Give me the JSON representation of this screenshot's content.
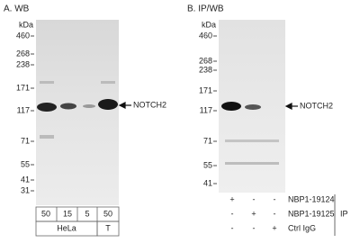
{
  "panels": [
    {
      "title": "A. WB",
      "unit": "kDa",
      "markers": [
        "460",
        "268",
        "238",
        "171",
        "117",
        "71",
        "55",
        "41",
        "31"
      ],
      "band_label": "NOTCH2",
      "lanes": [
        "50",
        "15",
        "5",
        "50"
      ],
      "groups": [
        "HeLa",
        "T"
      ]
    },
    {
      "title": "B. IP/WB",
      "unit": "kDa",
      "markers": [
        "460",
        "268",
        "238",
        "171",
        "117",
        "71",
        "55",
        "41"
      ],
      "band_label": "NOTCH2",
      "ip_rows": [
        {
          "name": "NBP1-19124",
          "signs": [
            "+",
            "-",
            "-"
          ]
        },
        {
          "name": "NBP1-19125",
          "signs": [
            "-",
            "+",
            "-"
          ]
        },
        {
          "name": "Ctrl IgG",
          "signs": [
            "-",
            "-",
            "+"
          ]
        }
      ],
      "ip_label": "IP"
    }
  ]
}
